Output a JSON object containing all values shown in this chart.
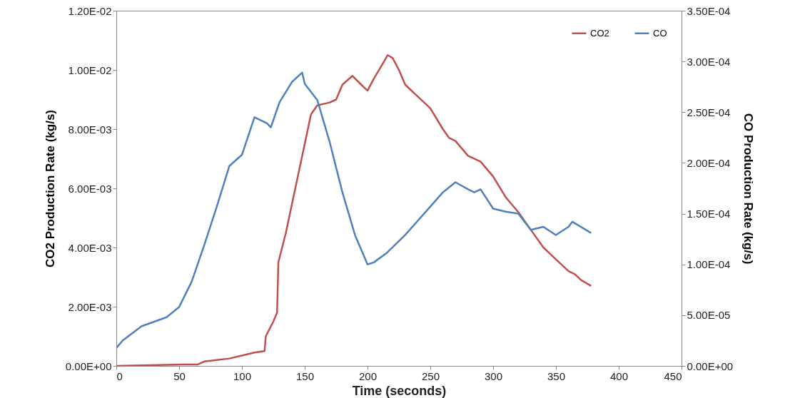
{
  "chart_data": {
    "type": "line",
    "xlabel": "Time (seconds)",
    "ylabel": "CO2 Production Rate (kg/s)",
    "y2label": "CO Production Rate (kg/s)",
    "xlim": [
      0,
      450
    ],
    "xticks": [
      0,
      50,
      100,
      150,
      200,
      250,
      300,
      350,
      400,
      450
    ],
    "ylim": [
      0,
      0.012
    ],
    "yticks": [
      {
        "value": 0,
        "label": "0.00E+00"
      },
      {
        "value": 0.002,
        "label": "2.00E-03"
      },
      {
        "value": 0.004,
        "label": "4.00E-03"
      },
      {
        "value": 0.006,
        "label": "6.00E-03"
      },
      {
        "value": 0.008,
        "label": "8.00E-03"
      },
      {
        "value": 0.01,
        "label": "1.00E-02"
      },
      {
        "value": 0.012,
        "label": "1.20E-02"
      }
    ],
    "y2lim": [
      0,
      0.00035
    ],
    "y2ticks": [
      {
        "value": 0,
        "label": "0.00E+00"
      },
      {
        "value": 5e-05,
        "label": "5.00E-05"
      },
      {
        "value": 0.0001,
        "label": "1.00E-04"
      },
      {
        "value": 0.00015,
        "label": "1.50E-04"
      },
      {
        "value": 0.0002,
        "label": "2.00E-04"
      },
      {
        "value": 0.00025,
        "label": "2.50E-04"
      },
      {
        "value": 0.0003,
        "label": "3.00E-04"
      },
      {
        "value": 0.00035,
        "label": "3.50E-04"
      }
    ],
    "grid": false,
    "legend": "top right",
    "series": [
      {
        "name": "CO2",
        "color": "#c0504d",
        "x": [
          0,
          55,
          65,
          70,
          80,
          90,
          100,
          110,
          118,
          119,
          125,
          128,
          129,
          132,
          135,
          140,
          145,
          150,
          155,
          160,
          170,
          175,
          180,
          188,
          195,
          200,
          205,
          212,
          216,
          220,
          225,
          230,
          240,
          250,
          260,
          265,
          270,
          280,
          290,
          300,
          310,
          320,
          330,
          340,
          350,
          360,
          365,
          370,
          378
        ],
        "values": [
          0,
          5e-05,
          5e-05,
          0.00015,
          0.0002,
          0.00025,
          0.00035,
          0.00045,
          0.0005,
          0.001,
          0.0015,
          0.0018,
          0.0035,
          0.004,
          0.0045,
          0.0055,
          0.0065,
          0.0075,
          0.0085,
          0.0088,
          0.0089,
          0.009,
          0.0095,
          0.0098,
          0.0095,
          0.0093,
          0.0097,
          0.0102,
          0.0105,
          0.0104,
          0.01,
          0.0095,
          0.0091,
          0.0087,
          0.008,
          0.0077,
          0.0076,
          0.0071,
          0.0069,
          0.0064,
          0.0057,
          0.0052,
          0.0046,
          0.004,
          0.0036,
          0.0032,
          0.0031,
          0.0029,
          0.0027
        ]
      },
      {
        "name": "CO",
        "color": "#4f81bd",
        "axis": "y2",
        "x": [
          0,
          5,
          20,
          40,
          50,
          60,
          70,
          80,
          90,
          100,
          110,
          120,
          123,
          130,
          140,
          148,
          150,
          160,
          170,
          180,
          190,
          200,
          205,
          215,
          230,
          240,
          250,
          260,
          270,
          280,
          285,
          290,
          300,
          310,
          320,
          330,
          340,
          350,
          360,
          363,
          370,
          378
        ],
        "values": [
          1.76e-05,
          2.5e-05,
          3.9e-05,
          4.8e-05,
          5.8e-05,
          8.3e-05,
          0.000119,
          0.000157,
          0.000197,
          0.000208,
          0.000245,
          0.000239,
          0.000235,
          0.00026,
          0.00028,
          0.000289,
          0.000278,
          0.000262,
          0.00022,
          0.000171,
          0.000129,
          0.0001,
          0.000102,
          0.000111,
          0.000129,
          0.000143,
          0.000157,
          0.000171,
          0.000181,
          0.000174,
          0.000171,
          0.000174,
          0.000155,
          0.000152,
          0.00015,
          0.000134,
          0.000137,
          0.000129,
          0.000137,
          0.000142,
          0.000137,
          0.000131
        ]
      }
    ]
  }
}
